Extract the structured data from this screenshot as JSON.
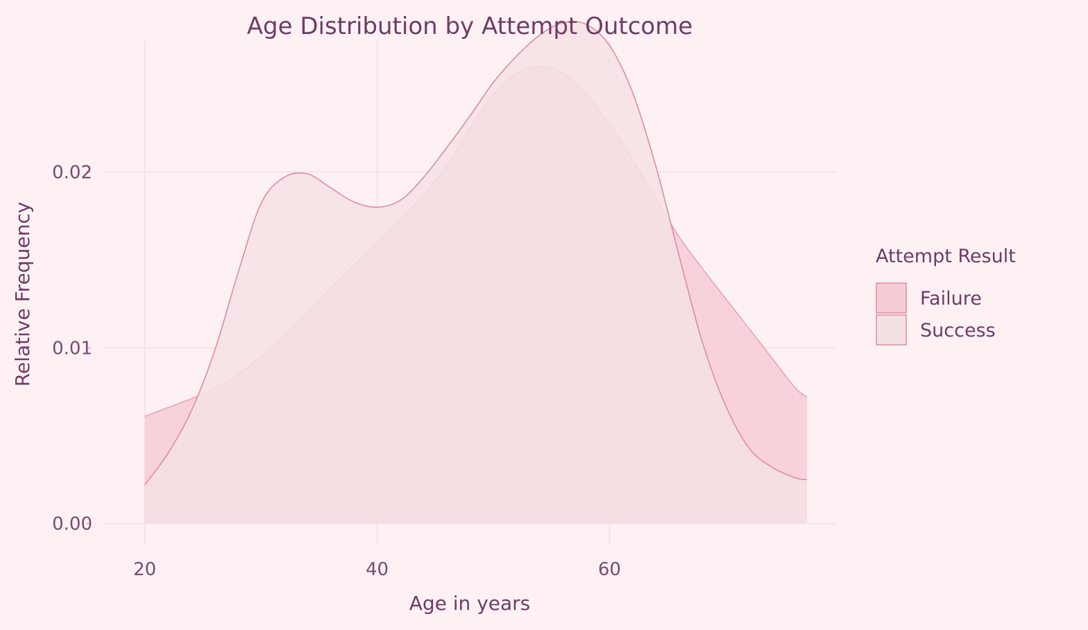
{
  "chart_data": {
    "type": "area",
    "title": "Age Distribution by Attempt Outcome",
    "xlabel": "Age in years",
    "ylabel": "Relative Frequency",
    "xlim": [
      16.5,
      79.5
    ],
    "ylim": [
      -0.0012,
      0.0275
    ],
    "x_ticks": [
      20,
      40,
      60
    ],
    "x_tick_labels": [
      "20",
      "40",
      "60"
    ],
    "y_ticks": [
      0.0,
      0.01,
      0.02
    ],
    "y_tick_labels": [
      "0.00",
      "0.01",
      "0.02"
    ],
    "grid": true,
    "legend": {
      "title": "Attempt Result",
      "position": "right",
      "entries": [
        "Failure",
        "Success"
      ]
    },
    "series": [
      {
        "name": "Failure",
        "fill": "#f7cdd5",
        "stroke": "#e6a3b6",
        "opacity": 0.85,
        "x": [
          20,
          22,
          24,
          26,
          28,
          30,
          32,
          34,
          36,
          38,
          40,
          42,
          44,
          46,
          48,
          50,
          52,
          54,
          56,
          58,
          60,
          62,
          64,
          66,
          68,
          70,
          72,
          74,
          76,
          77
        ],
        "y": [
          0.0061,
          0.0066,
          0.0071,
          0.0077,
          0.0085,
          0.0095,
          0.0107,
          0.012,
          0.0134,
          0.0147,
          0.016,
          0.0173,
          0.0187,
          0.0204,
          0.0225,
          0.0244,
          0.0256,
          0.026,
          0.0256,
          0.0244,
          0.0227,
          0.0207,
          0.0185,
          0.0163,
          0.0145,
          0.0128,
          0.0111,
          0.0094,
          0.0077,
          0.0072
        ]
      },
      {
        "name": "Success",
        "fill": "#f4e2e3",
        "stroke": "#dc8ba6",
        "opacity": 0.85,
        "x": [
          20,
          22,
          24,
          26,
          28,
          30,
          32,
          34,
          36,
          38,
          40,
          42,
          44,
          46,
          48,
          50,
          52,
          54,
          56,
          58,
          60,
          62,
          64,
          66,
          68,
          70,
          72,
          74,
          76,
          77
        ],
        "y": [
          0.0022,
          0.004,
          0.0064,
          0.0098,
          0.0142,
          0.0182,
          0.0197,
          0.0199,
          0.0191,
          0.0183,
          0.018,
          0.0184,
          0.0197,
          0.0214,
          0.0232,
          0.0251,
          0.0266,
          0.0278,
          0.0285,
          0.0284,
          0.0272,
          0.0245,
          0.0203,
          0.0152,
          0.0103,
          0.0067,
          0.0043,
          0.0032,
          0.0026,
          0.0025
        ]
      }
    ]
  }
}
